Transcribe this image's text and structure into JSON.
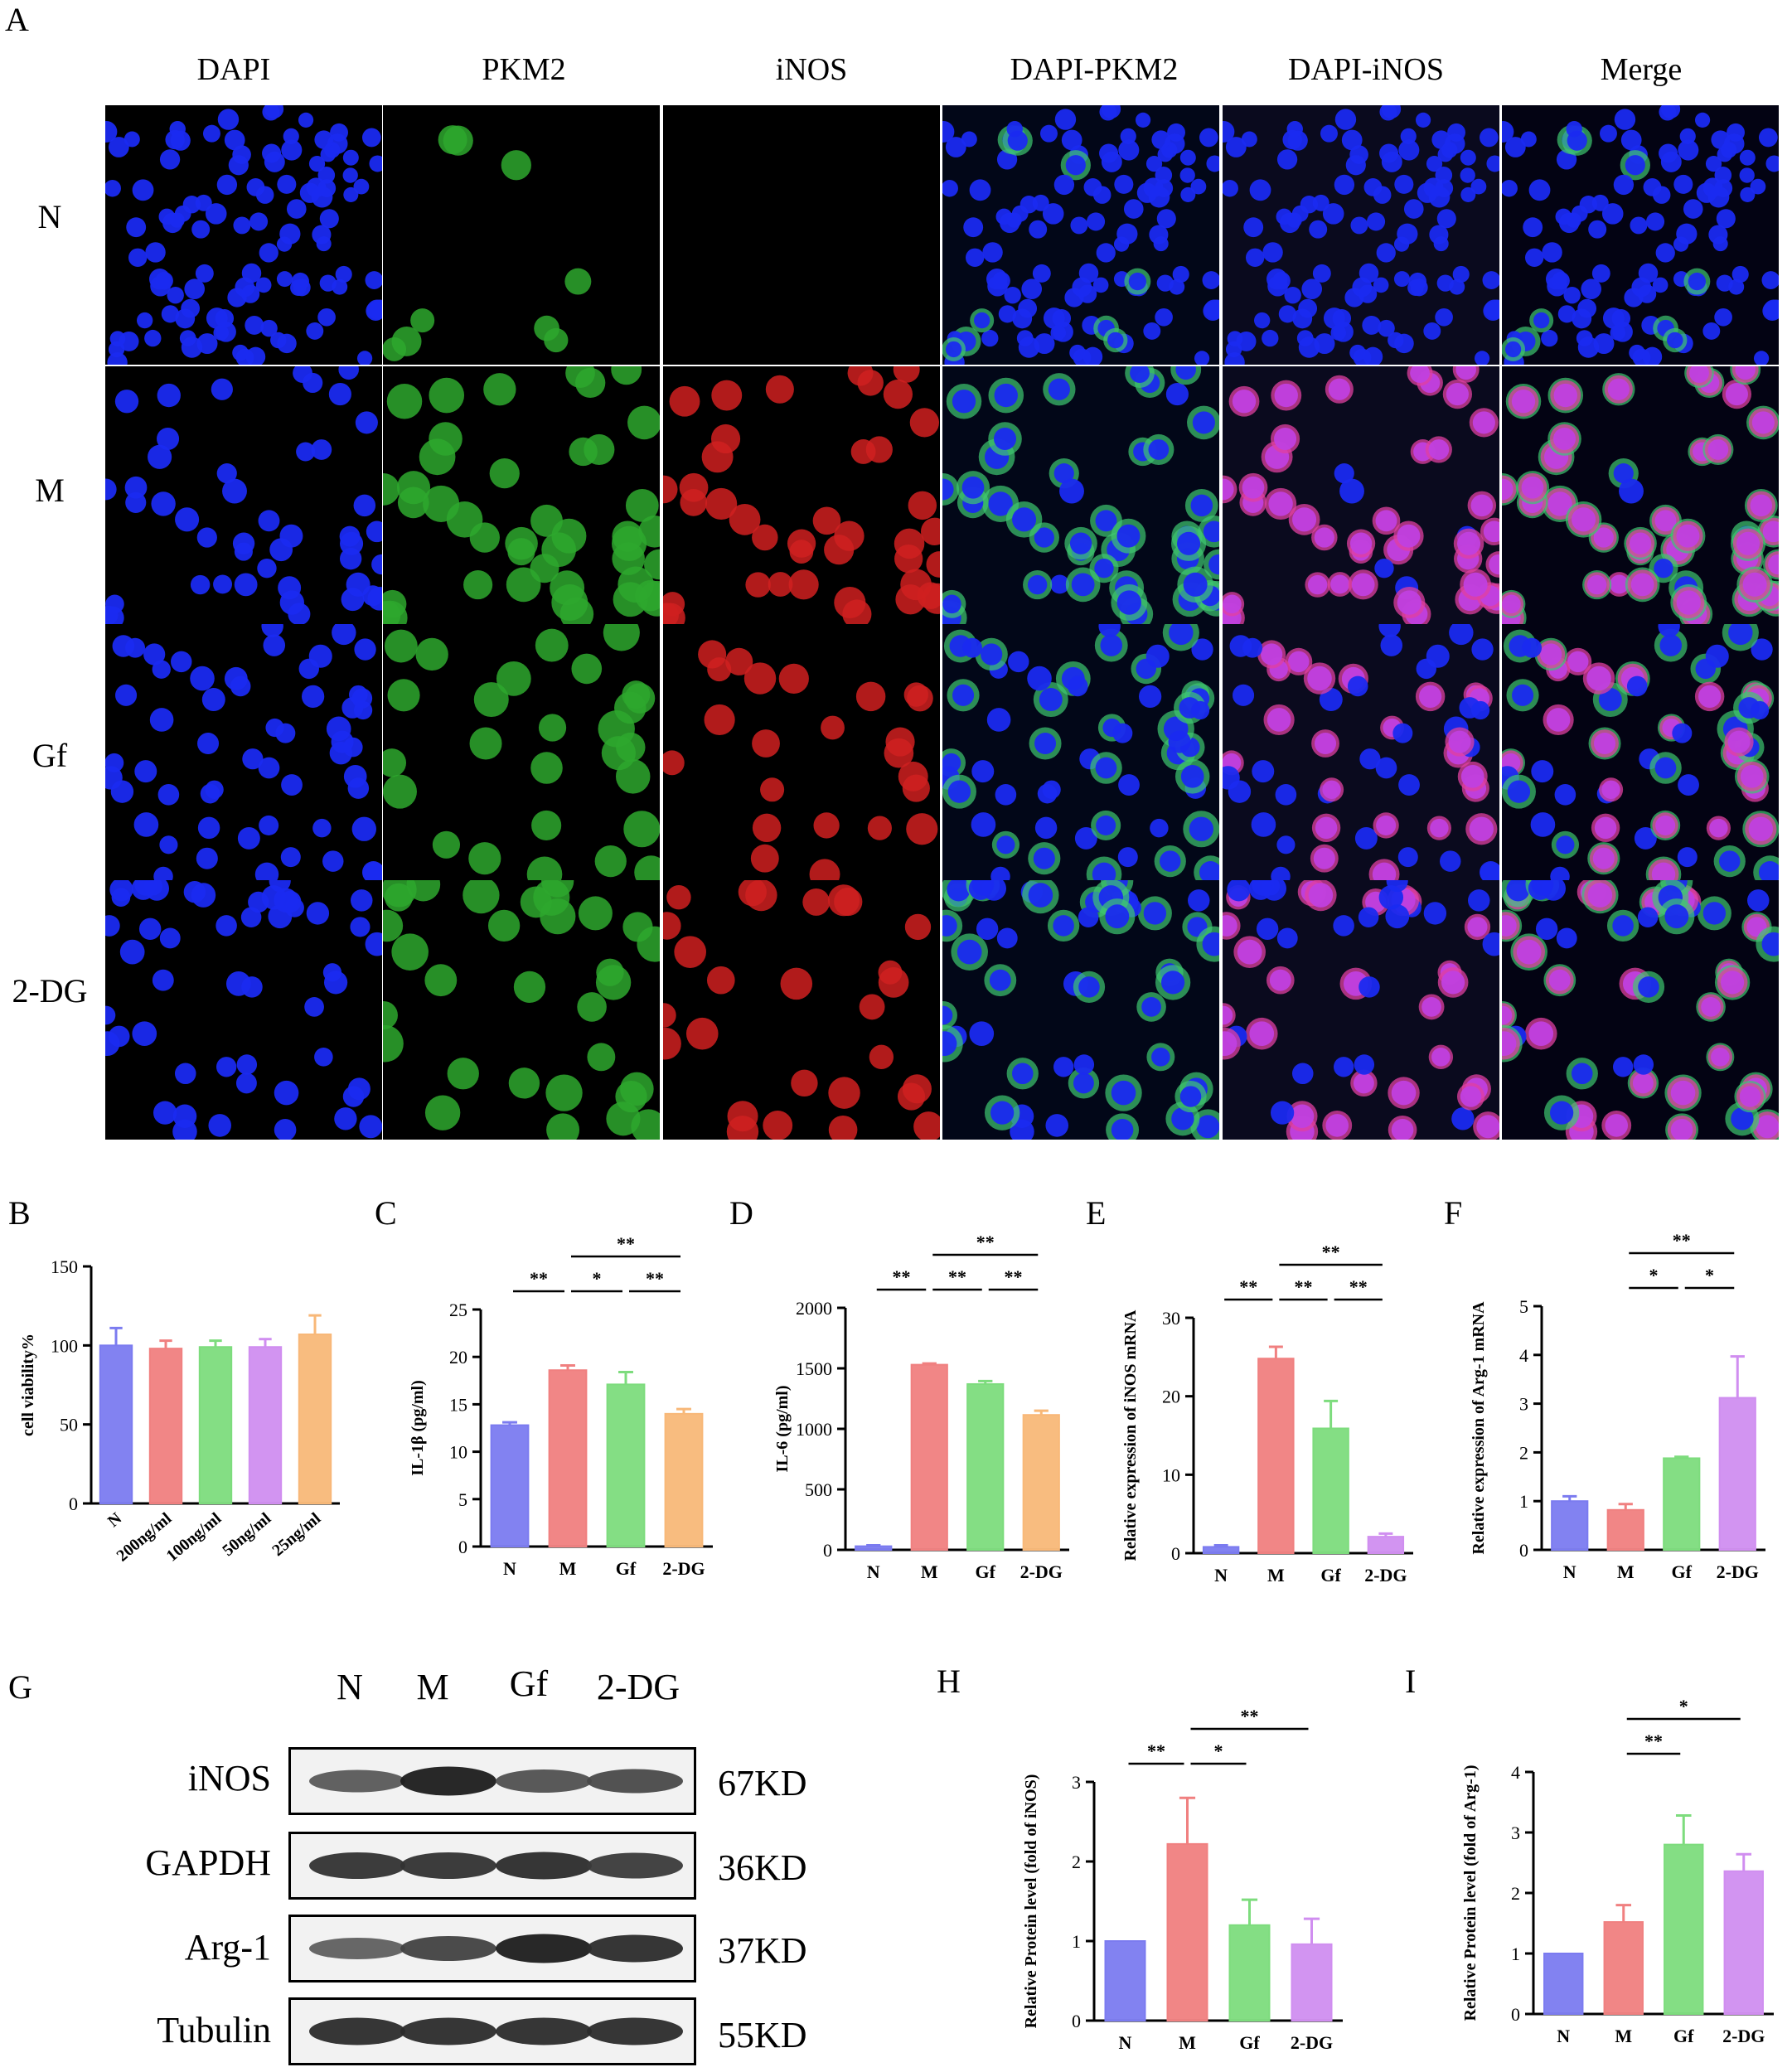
{
  "panelA": {
    "letter": "A",
    "columns": [
      "DAPI",
      "PKM2",
      "iNOS",
      "DAPI-PKM2",
      "DAPI-iNOS",
      "Merge"
    ],
    "rows": [
      "N",
      "M",
      "Gf",
      "2-DG"
    ]
  },
  "charts": [
    {
      "id": "B",
      "letter": "B",
      "type": "bar",
      "categories": [
        "N",
        "200ng/ml",
        "100ng/ml",
        "50ng/ml",
        "25ng/ml"
      ],
      "values": [
        100,
        98,
        99,
        99,
        107
      ],
      "errors": [
        11,
        5,
        4,
        5,
        12
      ],
      "colors": [
        "#7b7bf0",
        "#f08080",
        "#7ddc7d",
        "#d08ef0",
        "#f8b878"
      ],
      "ylabel": "cell viability%",
      "ylim": [
        0,
        150
      ],
      "yticks": [
        0,
        50,
        100,
        150
      ],
      "rotate_xticks": true,
      "sig": []
    },
    {
      "id": "C",
      "letter": "C",
      "type": "bar",
      "categories": [
        "N",
        "M",
        "Gf",
        "2-DG"
      ],
      "values": [
        12.8,
        18.6,
        17.1,
        14.0
      ],
      "errors": [
        0.3,
        0.5,
        1.3,
        0.5
      ],
      "colors": [
        "#7b7bf0",
        "#f08080",
        "#7ddc7d",
        "#f8b878"
      ],
      "ylabel": "IL-1β (pg/ml)",
      "ylim": [
        0,
        25
      ],
      "yticks": [
        0,
        5,
        10,
        15,
        20,
        25
      ],
      "rotate_xticks": false,
      "sig": [
        {
          "from": 0,
          "to": 1,
          "level": 0,
          "text": "**"
        },
        {
          "from": 1,
          "to": 2,
          "level": 0,
          "text": "*"
        },
        {
          "from": 2,
          "to": 3,
          "level": 0,
          "text": "**"
        },
        {
          "from": 1,
          "to": 3,
          "level": 1,
          "text": "**"
        }
      ]
    },
    {
      "id": "D",
      "letter": "D",
      "type": "bar",
      "categories": [
        "N",
        "M",
        "Gf",
        "2-DG"
      ],
      "values": [
        30,
        1530,
        1370,
        1115
      ],
      "errors": [
        8,
        10,
        25,
        35
      ],
      "colors": [
        "#7b7bf0",
        "#f08080",
        "#7ddc7d",
        "#f8b878"
      ],
      "ylabel": "IL-6 (pg/ml)",
      "ylim": [
        0,
        2000
      ],
      "yticks": [
        0,
        500,
        1000,
        1500,
        2000
      ],
      "rotate_xticks": false,
      "sig": [
        {
          "from": 0,
          "to": 1,
          "level": 0,
          "text": "**"
        },
        {
          "from": 1,
          "to": 2,
          "level": 0,
          "text": "**"
        },
        {
          "from": 2,
          "to": 3,
          "level": 0,
          "text": "**"
        },
        {
          "from": 1,
          "to": 3,
          "level": 1,
          "text": "**"
        }
      ]
    },
    {
      "id": "E",
      "letter": "E",
      "type": "bar",
      "categories": [
        "N",
        "M",
        "Gf",
        "2-DG"
      ],
      "values": [
        0.8,
        24.8,
        15.9,
        2.1
      ],
      "errors": [
        0.2,
        1.5,
        3.5,
        0.4
      ],
      "colors": [
        "#7b7bf0",
        "#f08080",
        "#7ddc7d",
        "#d08ef0"
      ],
      "ylabel": "Relative expression of iNOS mRNA",
      "ylim": [
        0,
        30
      ],
      "yticks": [
        0,
        10,
        20,
        30
      ],
      "rotate_xticks": false,
      "sig": [
        {
          "from": 0,
          "to": 1,
          "level": 0,
          "text": "**"
        },
        {
          "from": 1,
          "to": 2,
          "level": 0,
          "text": "**"
        },
        {
          "from": 2,
          "to": 3,
          "level": 0,
          "text": "**"
        },
        {
          "from": 1,
          "to": 3,
          "level": 1,
          "text": "**"
        }
      ]
    },
    {
      "id": "F",
      "letter": "F",
      "type": "bar",
      "categories": [
        "N",
        "M",
        "Gf",
        "2-DG"
      ],
      "values": [
        1.0,
        0.82,
        1.88,
        3.12
      ],
      "errors": [
        0.1,
        0.12,
        0.03,
        0.85
      ],
      "colors": [
        "#7b7bf0",
        "#f08080",
        "#7ddc7d",
        "#d08ef0"
      ],
      "ylabel": "Relative expression of Arg-1 mRNA",
      "ylim": [
        0,
        5
      ],
      "yticks": [
        0,
        1,
        2,
        3,
        4,
        5
      ],
      "rotate_xticks": false,
      "sig": [
        {
          "from": 1,
          "to": 2,
          "level": 0,
          "text": "*"
        },
        {
          "from": 2,
          "to": 3,
          "level": 0,
          "text": "*"
        },
        {
          "from": 1,
          "to": 3,
          "level": 1,
          "text": "**"
        }
      ]
    },
    {
      "id": "H",
      "letter": "H",
      "type": "bar",
      "categories": [
        "N",
        "M",
        "Gf",
        "2-DG"
      ],
      "values": [
        1.0,
        2.22,
        1.2,
        0.96
      ],
      "errors": [
        0,
        0.58,
        0.32,
        0.32
      ],
      "colors": [
        "#7b7bf0",
        "#f08080",
        "#7ddc7d",
        "#d08ef0"
      ],
      "ylabel": "Relative Protein level (fold of iNOS)",
      "ylim": [
        0,
        3
      ],
      "yticks": [
        0,
        1,
        2,
        3
      ],
      "rotate_xticks": false,
      "sig": [
        {
          "from": 0,
          "to": 1,
          "level": 0,
          "text": "**"
        },
        {
          "from": 1,
          "to": 2,
          "level": 0,
          "text": "*"
        },
        {
          "from": 1,
          "to": 3,
          "level": 1,
          "text": "**"
        }
      ]
    },
    {
      "id": "I",
      "letter": "I",
      "type": "bar",
      "categories": [
        "N",
        "M",
        "Gf",
        "2-DG"
      ],
      "values": [
        1.0,
        1.52,
        2.8,
        2.36
      ],
      "errors": [
        0,
        0.28,
        0.48,
        0.28
      ],
      "colors": [
        "#7b7bf0",
        "#f08080",
        "#7ddc7d",
        "#d08ef0"
      ],
      "ylabel": "Relative Protein level (fold of Arg-1)",
      "ylim": [
        0,
        4
      ],
      "yticks": [
        0,
        1,
        2,
        3,
        4
      ],
      "rotate_xticks": false,
      "sig": [
        {
          "from": 1,
          "to": 2,
          "level": 0,
          "text": "**"
        },
        {
          "from": 1,
          "to": 3,
          "level": 1,
          "text": "*"
        }
      ]
    }
  ],
  "panelG": {
    "letter": "G",
    "lanes": [
      "N",
      "M",
      "Gf",
      "2-DG"
    ],
    "blots": [
      {
        "protein": "iNOS",
        "size": "67KD",
        "intensity": [
          0.55,
          0.95,
          0.6,
          0.65
        ]
      },
      {
        "protein": "GAPDH",
        "size": "36KD",
        "intensity": [
          0.8,
          0.8,
          0.85,
          0.75
        ]
      },
      {
        "protein": "Arg-1",
        "size": "37KD",
        "intensity": [
          0.5,
          0.7,
          0.95,
          0.85
        ]
      },
      {
        "protein": "Tubulin",
        "size": "55KD",
        "intensity": [
          0.85,
          0.85,
          0.85,
          0.85
        ]
      }
    ]
  }
}
